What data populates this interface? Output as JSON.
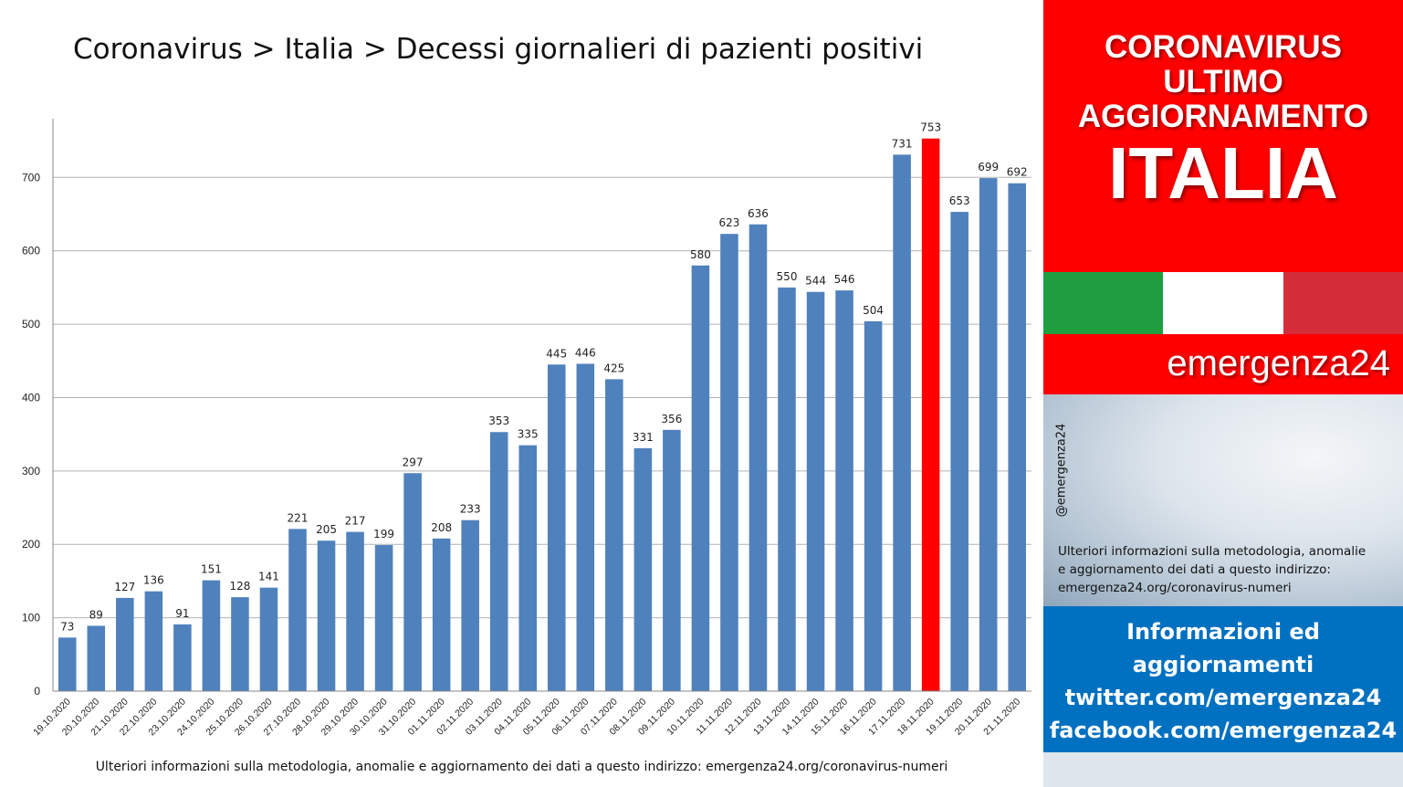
{
  "header": {
    "title": "Coronavirus > Italia > Decessi giornalieri di pazienti positivi"
  },
  "footer": {
    "note": "Ulteriori informazioni sulla metodologia, anomalie e aggiornamento dei dati a questo indirizzo: emergenza24.org/coronavirus-numeri"
  },
  "sidebar": {
    "banner_lines": [
      "CORONAVIRUS",
      "ULTIMO",
      "AGGIORNAMENTO"
    ],
    "banner_big": "ITALIA",
    "brand": "emergenza24",
    "handle": "@emergenza24",
    "info_lines": [
      "Ulteriori informazioni sulla metodologia, anomalie",
      "e aggiornamento dei dati a questo indirizzo:",
      "emergenza24.org/coronavirus-numeri"
    ],
    "social_lines": [
      "Informazioni ed",
      "aggiornamenti",
      "twitter.com/emergenza24",
      "facebook.com/emergenza24"
    ],
    "flag_colors": [
      "#1e9e3e",
      "#ffffff",
      "#d42e3b"
    ]
  },
  "colors": {
    "bar": "#4f81bd",
    "highlight": "#ff0000",
    "banner": "#ff0000",
    "social": "#0070c0"
  },
  "chart_data": {
    "type": "bar",
    "title": "",
    "xlabel": "",
    "ylabel": "",
    "ylim": [
      0,
      780
    ],
    "yticks": [
      0,
      100,
      200,
      300,
      400,
      500,
      600,
      700
    ],
    "grid": true,
    "highlight_index": 30,
    "categories": [
      "19.10.2020",
      "20.10.2020",
      "21.10.2020",
      "22.10.2020",
      "23.10.2020",
      "24.10.2020",
      "25.10.2020",
      "26.10.2020",
      "27.10.2020",
      "28.10.2020",
      "29.10.2020",
      "30.10.2020",
      "31.10.2020",
      "01.11.2020",
      "02.11.2020",
      "03.11.2020",
      "04.11.2020",
      "05.11.2020",
      "06.11.2020",
      "07.11.2020",
      "08.11.2020",
      "09.11.2020",
      "10.11.2020",
      "11.11.2020",
      "12.11.2020",
      "13.11.2020",
      "14.11.2020",
      "15.11.2020",
      "16.11.2020",
      "17.11.2020",
      "18.11.2020",
      "19.11.2020",
      "20.11.2020",
      "21.11.2020"
    ],
    "values": [
      73,
      89,
      127,
      136,
      91,
      151,
      128,
      141,
      221,
      205,
      217,
      199,
      297,
      208,
      233,
      353,
      335,
      445,
      446,
      425,
      331,
      356,
      580,
      623,
      636,
      550,
      544,
      546,
      504,
      731,
      753,
      653,
      699,
      692
    ]
  }
}
